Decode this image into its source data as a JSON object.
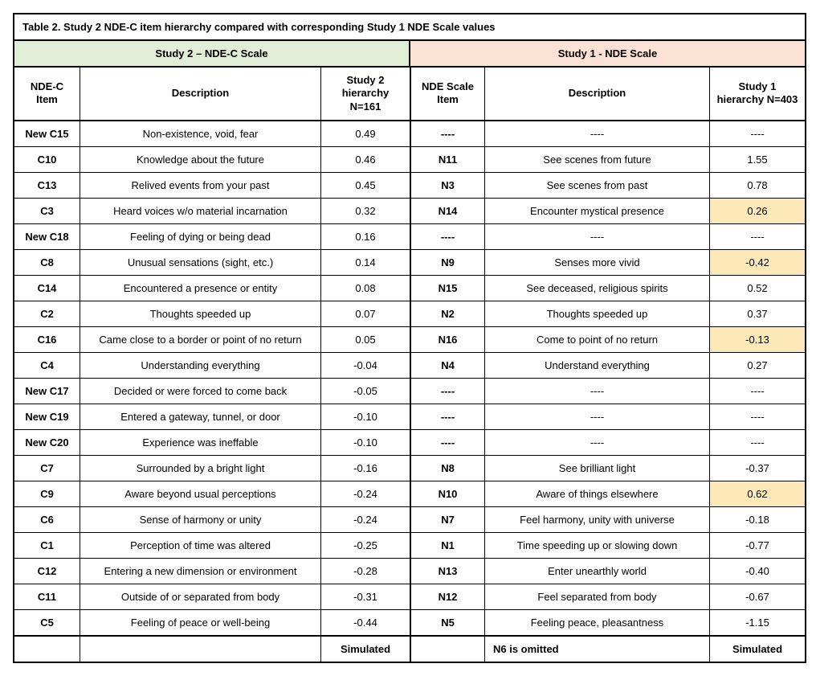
{
  "title": "Table 2. Study 2 NDE-C item hierarchy compared with corresponding Study 1 NDE Scale values",
  "group_headers": {
    "left": {
      "label": "Study 2 – NDE-C Scale",
      "bg": "#e0eed5"
    },
    "right": {
      "label": "Study 1 - NDE Scale",
      "bg": "#fbe0d4"
    }
  },
  "columns": {
    "c1": "NDE-C Item",
    "c2": "Description",
    "c3": "Study 2 hierarchy N=161",
    "c4": "NDE Scale Item",
    "c5": "Description",
    "c6": "Study 1 hierarchy N=403"
  },
  "highlight_color": "#fde9b8",
  "rows": [
    {
      "c1": "New C15",
      "c2": "Non-existence, void, fear",
      "c3": "0.49",
      "c4": "----",
      "c5": "----",
      "c6": "----",
      "hl6": false
    },
    {
      "c1": "C10",
      "c2": "Knowledge about the future",
      "c3": "0.46",
      "c4": "N11",
      "c5": "See scenes from future",
      "c6": "1.55",
      "hl6": false
    },
    {
      "c1": "C13",
      "c2": "Relived events from your past",
      "c3": "0.45",
      "c4": "N3",
      "c5": "See scenes from past",
      "c6": "0.78",
      "hl6": false
    },
    {
      "c1": "C3",
      "c2": "Heard voices w/o material incarnation",
      "c3": "0.32",
      "c4": "N14",
      "c5": "Encounter mystical presence",
      "c6": "0.26",
      "hl6": true
    },
    {
      "c1": "New C18",
      "c2": "Feeling of dying or being dead",
      "c3": "0.16",
      "c4": "----",
      "c5": "----",
      "c6": "----",
      "hl6": false
    },
    {
      "c1": "C8",
      "c2": "Unusual sensations (sight, etc.)",
      "c3": "0.14",
      "c4": "N9",
      "c5": "Senses more vivid",
      "c6": "-0.42",
      "hl6": true
    },
    {
      "c1": "C14",
      "c2": "Encountered a presence or entity",
      "c3": "0.08",
      "c4": "N15",
      "c5": "See deceased, religious spirits",
      "c6": "0.52",
      "hl6": false
    },
    {
      "c1": "C2",
      "c2": "Thoughts speeded up",
      "c3": "0.07",
      "c4": "N2",
      "c5": "Thoughts speeded up",
      "c6": "0.37",
      "hl6": false
    },
    {
      "c1": "C16",
      "c2": "Came close to a border or point of no return",
      "c3": "0.05",
      "c4": "N16",
      "c5": "Come to point of no return",
      "c6": "-0.13",
      "hl6": true
    },
    {
      "c1": "C4",
      "c2": "Understanding everything",
      "c3": "-0.04",
      "c4": "N4",
      "c5": "Understand everything",
      "c6": "0.27",
      "hl6": false
    },
    {
      "c1": "New C17",
      "c2": "Decided or were forced to come back",
      "c3": "-0.05",
      "c4": "----",
      "c5": "----",
      "c6": "----",
      "hl6": false
    },
    {
      "c1": "New C19",
      "c2": "Entered a gateway, tunnel, or door",
      "c3": "-0.10",
      "c4": "----",
      "c5": "----",
      "c6": "----",
      "hl6": false
    },
    {
      "c1": "New C20",
      "c2": "Experience was ineffable",
      "c3": "-0.10",
      "c4": "----",
      "c5": "----",
      "c6": "----",
      "hl6": false
    },
    {
      "c1": "C7",
      "c2": "Surrounded by a bright light",
      "c3": "-0.16",
      "c4": "N8",
      "c5": "See brilliant light",
      "c6": "-0.37",
      "hl6": false
    },
    {
      "c1": "C9",
      "c2": "Aware beyond usual perceptions",
      "c3": "-0.24",
      "c4": "N10",
      "c5": "Aware of things elsewhere",
      "c6": "0.62",
      "hl6": true
    },
    {
      "c1": "C6",
      "c2": "Sense of harmony or unity",
      "c3": "-0.24",
      "c4": "N7",
      "c5": "Feel harmony, unity with universe",
      "c6": "-0.18",
      "hl6": false
    },
    {
      "c1": "C1",
      "c2": "Perception of time was altered",
      "c3": "-0.25",
      "c4": "N1",
      "c5": "Time speeding up or slowing down",
      "c6": "-0.77",
      "hl6": false
    },
    {
      "c1": "C12",
      "c2": "Entering a new dimension or environment",
      "c3": "-0.28",
      "c4": "N13",
      "c5": "Enter unearthly world",
      "c6": "-0.40",
      "hl6": false
    },
    {
      "c1": "C11",
      "c2": "Outside of or separated from body",
      "c3": "-0.31",
      "c4": "N12",
      "c5": "Feel separated from body",
      "c6": "-0.67",
      "hl6": false
    },
    {
      "c1": "C5",
      "c2": "Feeling of peace or well-being",
      "c3": "-0.44",
      "c4": "N5",
      "c5": "Feeling peace, pleasantness",
      "c6": "-1.15",
      "hl6": false
    }
  ],
  "footer": {
    "c1": "",
    "c2": "",
    "c3": "Simulated",
    "c4": "",
    "c5": "N6 is omitted",
    "c6": "Simulated"
  }
}
